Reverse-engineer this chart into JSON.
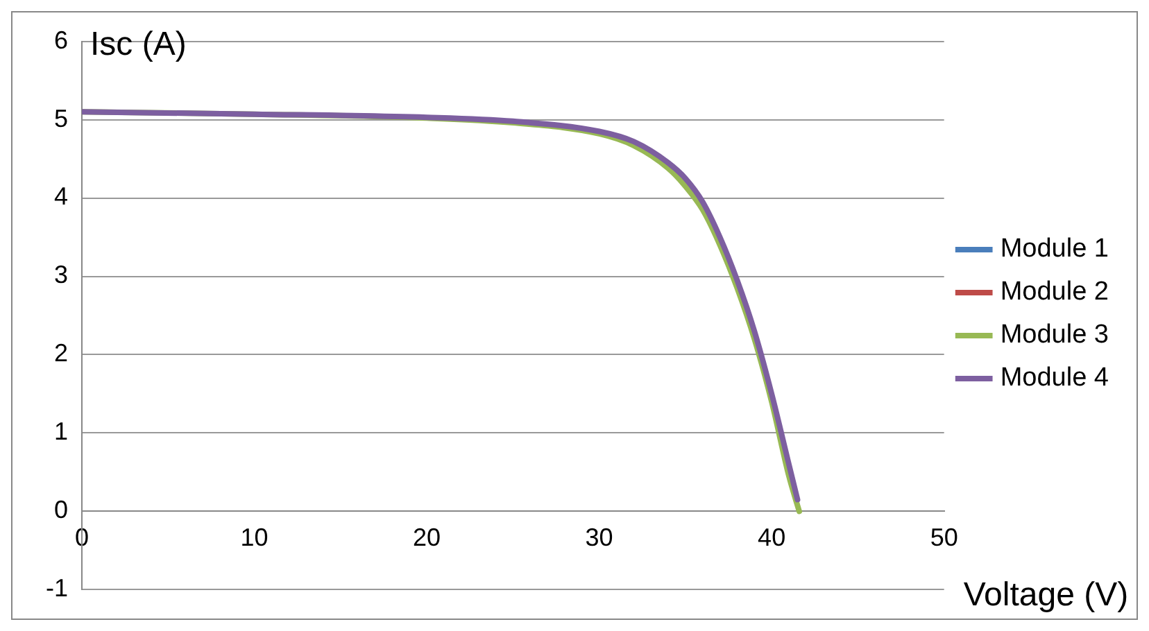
{
  "chart_data": {
    "type": "line",
    "xlabel": "Voltage (V)",
    "ylabel": "Isc (A)",
    "xlim": [
      0,
      50
    ],
    "xticks": [
      0,
      10,
      20,
      30,
      40,
      50
    ],
    "ylim": [
      -1,
      6
    ],
    "yticks": [
      -1,
      0,
      1,
      2,
      3,
      4,
      5,
      6
    ],
    "grid": "y",
    "legend": "right",
    "marker": "none",
    "line_style": "solid",
    "series": [
      {
        "name": "Module 1",
        "color": "#4a7ebb"
      },
      {
        "name": "Module 2",
        "color": "#be4b48"
      },
      {
        "name": "Module 3",
        "color": "#98b954",
        "x": [
          0,
          10,
          20,
          25,
          30,
          32,
          34,
          35,
          36,
          37,
          38,
          39,
          40,
          41,
          41.6
        ],
        "values": [
          5.1,
          5.07,
          5.02,
          4.96,
          4.82,
          4.67,
          4.38,
          4.15,
          3.85,
          3.4,
          2.85,
          2.2,
          1.4,
          0.45,
          0
        ]
      },
      {
        "name": "Module 4",
        "color": "#7d5fa0",
        "x": [
          0,
          10,
          20,
          25,
          30,
          32,
          34,
          35,
          36,
          37,
          38,
          39,
          40,
          41,
          41.5
        ],
        "values": [
          5.1,
          5.07,
          5.03,
          4.98,
          4.85,
          4.72,
          4.45,
          4.25,
          3.95,
          3.5,
          2.95,
          2.3,
          1.5,
          0.6,
          0.15
        ]
      }
    ]
  }
}
